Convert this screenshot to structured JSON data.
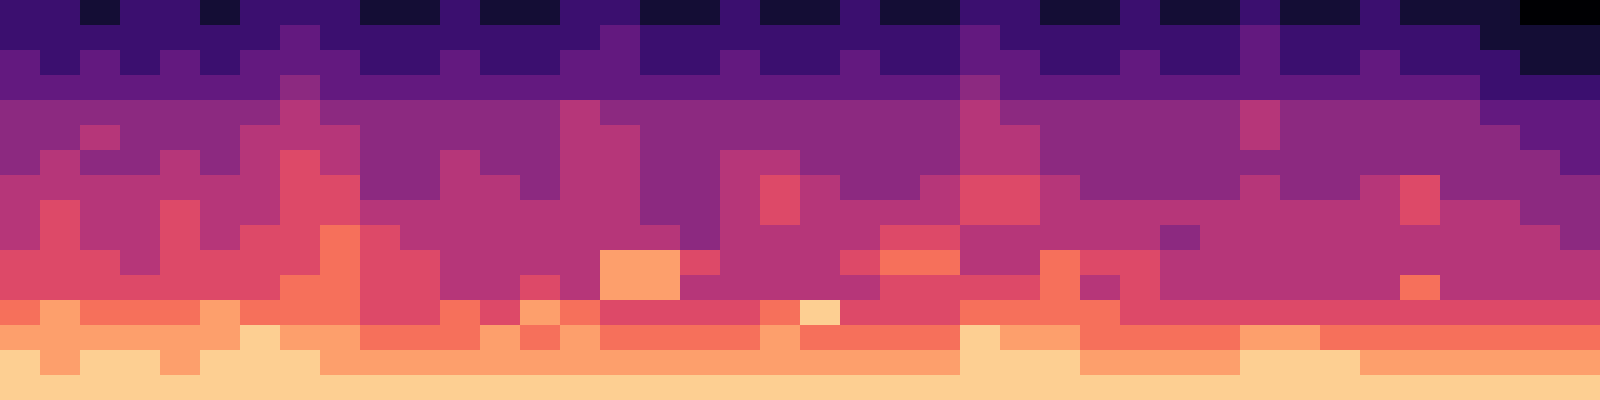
{
  "chart_data": {
    "type": "heatmap",
    "tick_labels": false,
    "color_range": [
      0,
      10
    ],
    "cells": [
      [
        2,
        2,
        1,
        2,
        2,
        1,
        2,
        2,
        2,
        1,
        1,
        2,
        1,
        1,
        2,
        2,
        1,
        1,
        2,
        1,
        1,
        2,
        1,
        1,
        2,
        2,
        1,
        1,
        2,
        1,
        1,
        2,
        1,
        1,
        2,
        1,
        1,
        1,
        0,
        0
      ],
      [
        2,
        2,
        2,
        2,
        2,
        2,
        2,
        3,
        2,
        2,
        2,
        2,
        2,
        2,
        2,
        3,
        2,
        2,
        2,
        2,
        2,
        2,
        2,
        2,
        3,
        2,
        2,
        2,
        2,
        2,
        2,
        3,
        2,
        2,
        2,
        2,
        2,
        1,
        1,
        1
      ],
      [
        3,
        2,
        3,
        2,
        3,
        2,
        3,
        3,
        3,
        2,
        2,
        3,
        2,
        2,
        3,
        3,
        2,
        2,
        3,
        2,
        2,
        3,
        2,
        2,
        3,
        3,
        2,
        2,
        3,
        2,
        2,
        3,
        2,
        2,
        3,
        2,
        2,
        2,
        1,
        1
      ],
      [
        3,
        3,
        3,
        3,
        3,
        3,
        3,
        4,
        3,
        3,
        3,
        3,
        3,
        3,
        3,
        3,
        3,
        3,
        3,
        3,
        3,
        3,
        3,
        3,
        4,
        3,
        3,
        3,
        3,
        3,
        3,
        3,
        3,
        3,
        3,
        3,
        3,
        2,
        2,
        2
      ],
      [
        4,
        4,
        4,
        4,
        4,
        4,
        4,
        5,
        4,
        4,
        4,
        4,
        4,
        4,
        5,
        4,
        4,
        4,
        4,
        4,
        4,
        4,
        4,
        4,
        5,
        4,
        4,
        4,
        4,
        4,
        4,
        5,
        4,
        4,
        4,
        4,
        4,
        3,
        3,
        3
      ],
      [
        4,
        4,
        5,
        4,
        4,
        4,
        5,
        5,
        5,
        4,
        4,
        4,
        4,
        4,
        5,
        5,
        4,
        4,
        4,
        4,
        4,
        4,
        4,
        4,
        5,
        5,
        4,
        4,
        4,
        4,
        4,
        5,
        4,
        4,
        4,
        4,
        4,
        4,
        3,
        3
      ],
      [
        4,
        5,
        4,
        4,
        5,
        4,
        5,
        6,
        5,
        4,
        4,
        5,
        4,
        4,
        5,
        5,
        4,
        4,
        5,
        5,
        4,
        4,
        4,
        4,
        5,
        5,
        4,
        4,
        4,
        4,
        4,
        4,
        4,
        4,
        4,
        4,
        4,
        4,
        4,
        3
      ],
      [
        5,
        5,
        5,
        5,
        5,
        5,
        5,
        6,
        6,
        4,
        4,
        5,
        5,
        4,
        5,
        5,
        4,
        4,
        5,
        6,
        5,
        4,
        4,
        5,
        6,
        6,
        5,
        4,
        4,
        4,
        4,
        5,
        4,
        4,
        5,
        6,
        4,
        4,
        4,
        4
      ],
      [
        5,
        6,
        5,
        5,
        6,
        5,
        5,
        6,
        6,
        5,
        5,
        5,
        5,
        5,
        5,
        5,
        4,
        4,
        5,
        6,
        5,
        5,
        5,
        5,
        6,
        6,
        5,
        5,
        5,
        5,
        5,
        5,
        5,
        5,
        5,
        6,
        5,
        5,
        4,
        4
      ],
      [
        5,
        6,
        5,
        5,
        6,
        5,
        6,
        6,
        7,
        6,
        5,
        5,
        5,
        5,
        5,
        5,
        5,
        4,
        5,
        5,
        5,
        5,
        6,
        6,
        5,
        5,
        5,
        5,
        5,
        4,
        5,
        5,
        5,
        5,
        5,
        5,
        5,
        5,
        5,
        4
      ],
      [
        6,
        6,
        6,
        5,
        6,
        6,
        6,
        6,
        7,
        6,
        6,
        5,
        5,
        5,
        5,
        8,
        8,
        6,
        5,
        5,
        5,
        6,
        7,
        7,
        5,
        5,
        7,
        6,
        6,
        5,
        5,
        5,
        5,
        5,
        5,
        5,
        5,
        5,
        5,
        5
      ],
      [
        6,
        6,
        6,
        6,
        6,
        6,
        6,
        7,
        7,
        6,
        6,
        5,
        5,
        6,
        5,
        8,
        8,
        5,
        5,
        5,
        5,
        5,
        6,
        6,
        6,
        6,
        7,
        5,
        6,
        5,
        5,
        5,
        5,
        5,
        5,
        7,
        5,
        5,
        5,
        5
      ],
      [
        7,
        8,
        7,
        7,
        7,
        8,
        7,
        7,
        7,
        6,
        6,
        7,
        6,
        8,
        7,
        6,
        6,
        6,
        6,
        7,
        9,
        6,
        6,
        6,
        7,
        7,
        7,
        7,
        6,
        6,
        6,
        6,
        6,
        6,
        6,
        6,
        6,
        6,
        6,
        6
      ],
      [
        8,
        8,
        8,
        8,
        8,
        8,
        9,
        8,
        8,
        7,
        7,
        7,
        8,
        7,
        8,
        7,
        7,
        7,
        7,
        8,
        7,
        7,
        7,
        7,
        9,
        8,
        8,
        7,
        7,
        7,
        7,
        8,
        8,
        7,
        7,
        7,
        7,
        7,
        7,
        7
      ],
      [
        9,
        8,
        9,
        9,
        8,
        9,
        9,
        9,
        8,
        8,
        8,
        8,
        8,
        8,
        8,
        8,
        8,
        8,
        8,
        8,
        8,
        8,
        8,
        8,
        9,
        9,
        9,
        8,
        8,
        8,
        8,
        9,
        9,
        9,
        8,
        8,
        8,
        8,
        8,
        8
      ],
      [
        9,
        9,
        9,
        9,
        9,
        9,
        9,
        9,
        9,
        9,
        9,
        9,
        9,
        9,
        9,
        9,
        9,
        9,
        9,
        9,
        9,
        9,
        9,
        9,
        9,
        9,
        9,
        9,
        9,
        9,
        9,
        9,
        9,
        9,
        9,
        9,
        9,
        9,
        9,
        9
      ]
    ]
  }
}
